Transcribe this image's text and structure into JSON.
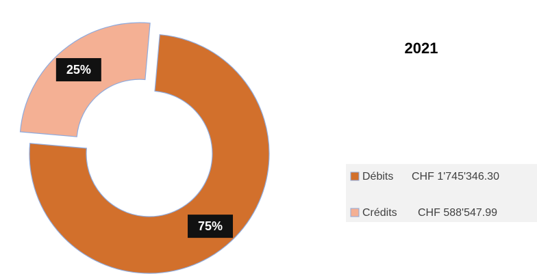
{
  "chart_data": {
    "type": "donut",
    "title": "2021",
    "categories": [
      "Débits",
      "Crédits"
    ],
    "amounts": [
      "CHF 1'745'346.30",
      "CHF 588'547.99"
    ],
    "values": [
      75,
      25
    ],
    "value_labels": [
      "75%",
      "25%"
    ],
    "colors": [
      "#d2702c",
      "#f4b094"
    ],
    "legend": "right"
  }
}
